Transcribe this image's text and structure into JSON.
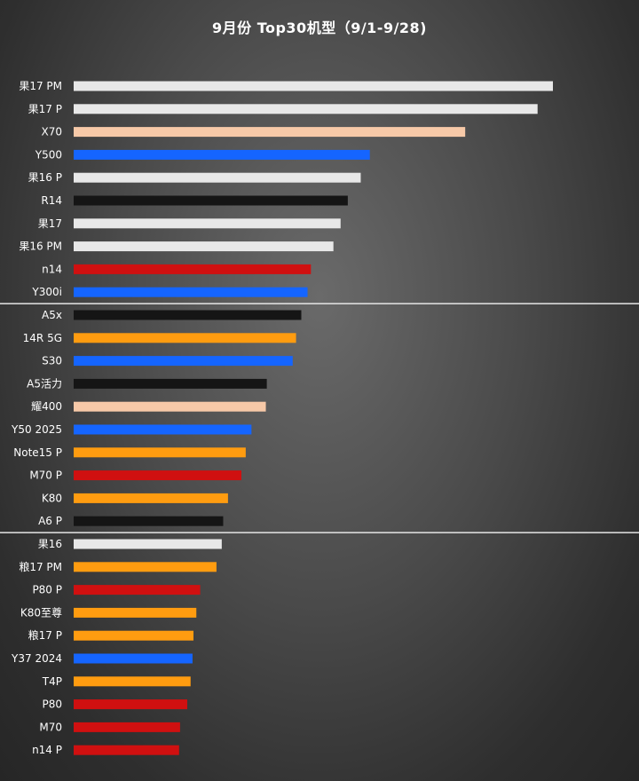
{
  "chart_data": {
    "type": "bar",
    "orientation": "horizontal",
    "title": "9月份 Top30机型（9/1-9/28)",
    "xlabel": "",
    "ylabel": "",
    "grid": false,
    "xlim": [
      0,
      100
    ],
    "group_separators_after": [
      10,
      20
    ],
    "colors": {
      "white": "#e8e8e8",
      "peach": "#f7c9a8",
      "blue": "#1565ff",
      "black": "#151515",
      "red": "#d01010",
      "orange": "#ff9c10"
    },
    "categories": [
      "果17 PM",
      "果17 P",
      "X70",
      "Y500",
      "果16 P",
      "R14",
      "果17",
      "果16 PM",
      "n14",
      "Y300i",
      "A5x",
      "14R 5G",
      "S30",
      "A5活力",
      "耀400",
      "Y50 2025",
      "Note15 P",
      "M70 P",
      "K80",
      "A6 P",
      "果16",
      "粮17 PM",
      "P80 P",
      "K80至尊",
      "粮17 P",
      "Y37 2024",
      "T4P",
      "P80",
      "M70",
      "n14 P"
    ],
    "values": [
      100,
      96.8,
      81.7,
      61.8,
      59.9,
      57.2,
      55.7,
      54.2,
      49.5,
      48.8,
      47.5,
      46.4,
      45.7,
      40.3,
      40.1,
      37.1,
      35.9,
      35.0,
      32.2,
      31.2,
      30.9,
      29.8,
      26.4,
      25.6,
      25.0,
      24.8,
      24.4,
      23.7,
      22.2,
      22.0
    ],
    "bar_colors": [
      "white",
      "white",
      "peach",
      "blue",
      "white",
      "black",
      "white",
      "white",
      "red",
      "blue",
      "black",
      "orange",
      "blue",
      "black",
      "peach",
      "blue",
      "orange",
      "red",
      "orange",
      "black",
      "white",
      "orange",
      "red",
      "orange",
      "orange",
      "blue",
      "orange",
      "red",
      "red",
      "red"
    ]
  }
}
